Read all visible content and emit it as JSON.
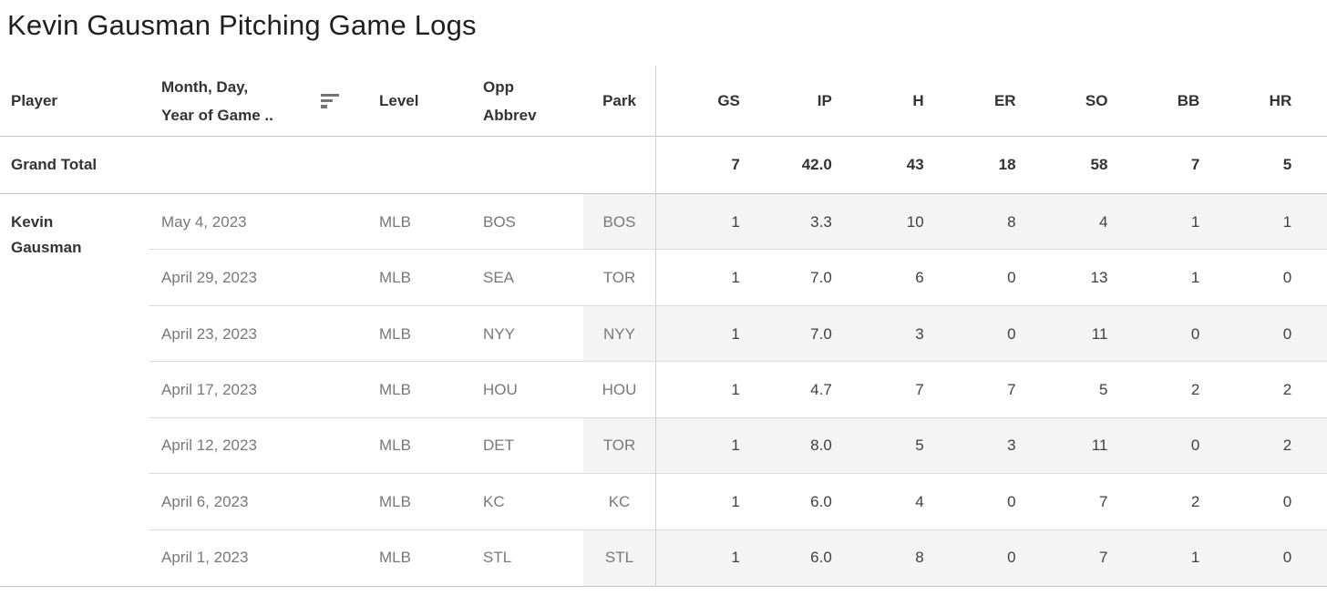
{
  "title": "Kevin Gausman Pitching Game Logs",
  "colors": {
    "band": "#f4f4f4",
    "row_separator": "#dcdcdc",
    "major_line": "#c6c6c6",
    "dimension_text": "#787878",
    "dark_text": "#333333"
  },
  "icons": {
    "date_sort": "sort-descending-icon"
  },
  "table": {
    "dim_headers": {
      "player": "Player",
      "date_line1": "Month, Day,",
      "date_line2": "Year of Game ..",
      "level": "Level",
      "opp_line1": "Opp",
      "opp_line2": "Abbrev",
      "park": "Park"
    },
    "stat_headers": [
      "GS",
      "IP",
      "H",
      "ER",
      "SO",
      "BB",
      "HR"
    ],
    "grand_total": {
      "label": "Grand Total",
      "values": [
        "7",
        "42.0",
        "43",
        "18",
        "58",
        "7",
        "5"
      ]
    },
    "player_name": "Kevin Gausman",
    "rows": [
      {
        "date": "May 4, 2023",
        "level": "MLB",
        "opp": "BOS",
        "park": "BOS",
        "values": [
          "1",
          "3.3",
          "10",
          "8",
          "4",
          "1",
          "1"
        ],
        "banded": true
      },
      {
        "date": "April 29, 2023",
        "level": "MLB",
        "opp": "SEA",
        "park": "TOR",
        "values": [
          "1",
          "7.0",
          "6",
          "0",
          "13",
          "1",
          "0"
        ],
        "banded": false
      },
      {
        "date": "April 23, 2023",
        "level": "MLB",
        "opp": "NYY",
        "park": "NYY",
        "values": [
          "1",
          "7.0",
          "3",
          "0",
          "11",
          "0",
          "0"
        ],
        "banded": true
      },
      {
        "date": "April 17, 2023",
        "level": "MLB",
        "opp": "HOU",
        "park": "HOU",
        "values": [
          "1",
          "4.7",
          "7",
          "7",
          "5",
          "2",
          "2"
        ],
        "banded": false
      },
      {
        "date": "April 12, 2023",
        "level": "MLB",
        "opp": "DET",
        "park": "TOR",
        "values": [
          "1",
          "8.0",
          "5",
          "3",
          "11",
          "0",
          "2"
        ],
        "banded": true
      },
      {
        "date": "April 6, 2023",
        "level": "MLB",
        "opp": "KC",
        "park": "KC",
        "values": [
          "1",
          "6.0",
          "4",
          "0",
          "7",
          "2",
          "0"
        ],
        "banded": false
      },
      {
        "date": "April 1, 2023",
        "level": "MLB",
        "opp": "STL",
        "park": "STL",
        "values": [
          "1",
          "6.0",
          "8",
          "0",
          "7",
          "1",
          "0"
        ],
        "banded": true
      }
    ]
  }
}
